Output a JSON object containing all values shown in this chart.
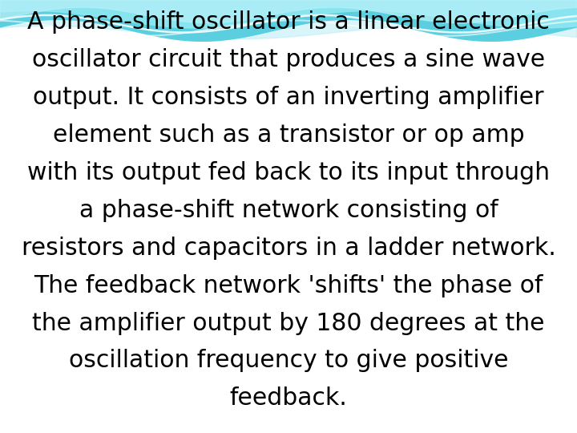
{
  "background_color": "#ffffff",
  "text_lines": [
    "A phase-shift oscillator is a linear electronic",
    "oscillator circuit that produces a sine wave",
    "output. It consists of an inverting amplifier",
    "element such as a transistor or op amp",
    "with its output fed back to its input through",
    "a phase-shift network consisting of",
    "resistors and capacitors in a ladder network.",
    "The feedback network 'shifts' the phase of",
    "the amplifier output by 180 degrees at the",
    "oscillation frequency to give positive",
    "feedback."
  ],
  "text_color": "#000000",
  "font_size": 21.5,
  "figsize": [
    7.2,
    5.4
  ],
  "dpi": 100
}
